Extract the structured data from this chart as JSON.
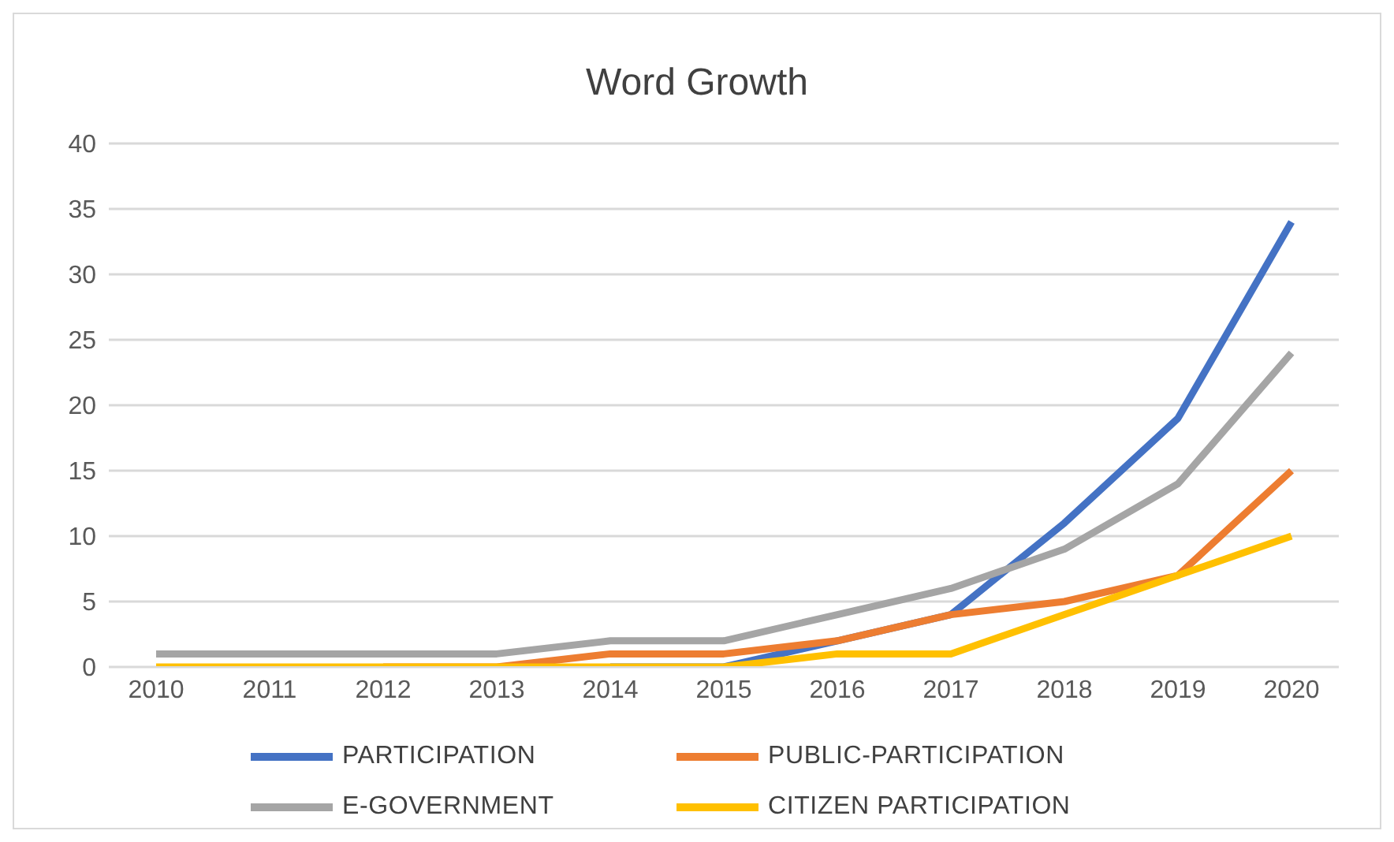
{
  "chart_data": {
    "type": "line",
    "title": "Word Growth",
    "categories": [
      "2010",
      "2011",
      "2012",
      "2013",
      "2014",
      "2015",
      "2016",
      "2017",
      "2018",
      "2019",
      "2020"
    ],
    "series": [
      {
        "name": "PARTICIPATION",
        "color": "#4472c4",
        "values": [
          null,
          null,
          null,
          null,
          0,
          0,
          2,
          4,
          11,
          19,
          34
        ]
      },
      {
        "name": "PUBLIC-PARTICIPATION",
        "color": "#ed7d31",
        "values": [
          null,
          null,
          0,
          0,
          1,
          1,
          2,
          4,
          5,
          7,
          15
        ]
      },
      {
        "name": "E-GOVERNMENT",
        "color": "#a5a5a5",
        "values": [
          1,
          1,
          1,
          1,
          2,
          2,
          4,
          6,
          9,
          14,
          24
        ]
      },
      {
        "name": "CITIZEN PARTICIPATION",
        "color": "#ffc000",
        "values": [
          0,
          0,
          0,
          0,
          0,
          0,
          1,
          1,
          4,
          7,
          10
        ]
      }
    ],
    "ylim": [
      0,
      40
    ],
    "yticks": [
      0,
      5,
      10,
      15,
      20,
      25,
      30,
      35,
      40
    ],
    "grid": "y",
    "legend": "bottom",
    "marker": "none",
    "line_style": "solid"
  }
}
